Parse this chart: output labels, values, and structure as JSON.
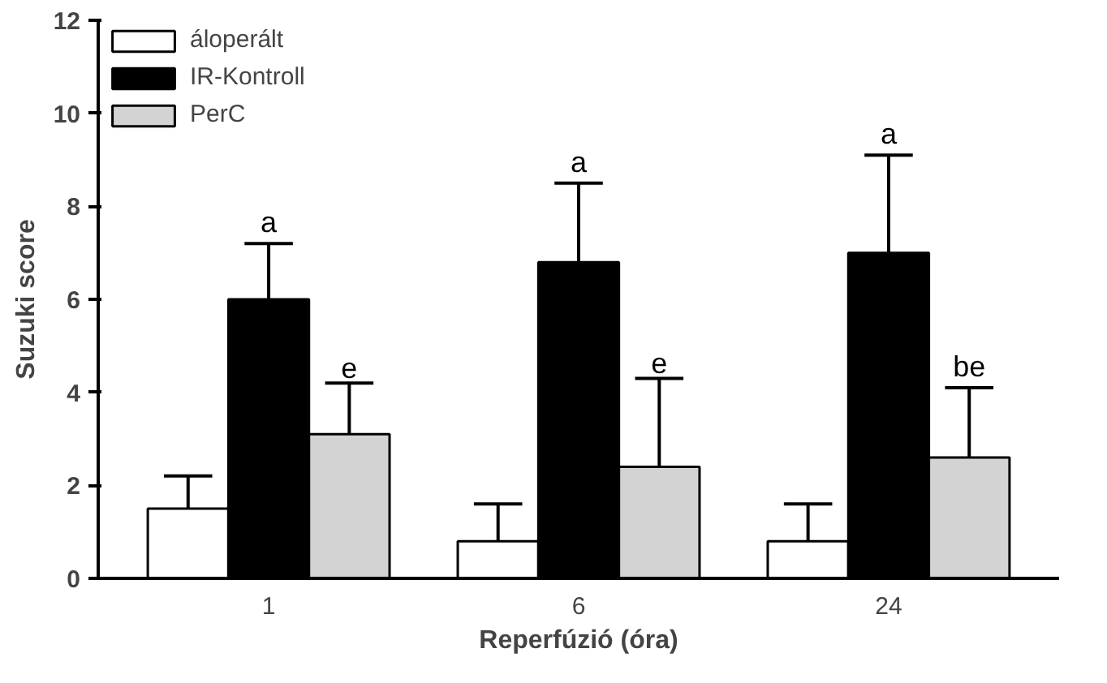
{
  "chart_data": {
    "type": "bar",
    "xlabel": "Reperfúzió (óra)",
    "ylabel": "Suzuki score",
    "categories": [
      "1",
      "6",
      "24"
    ],
    "series": [
      {
        "name": "áloperált",
        "color": "#ffffff",
        "values": [
          1.5,
          0.8,
          0.8
        ],
        "errors": [
          [
            1.5,
            2.2
          ],
          [
            0.8,
            1.6
          ],
          [
            0.8,
            1.6
          ]
        ]
      },
      {
        "name": "IR-Kontroll",
        "color": "#000000",
        "values": [
          6.0,
          6.8,
          7.0
        ],
        "errors": [
          [
            6.0,
            7.2
          ],
          [
            6.8,
            8.5
          ],
          [
            7.0,
            9.1
          ]
        ]
      },
      {
        "name": "PerC",
        "color": "#d3d3d3",
        "values": [
          3.1,
          2.4,
          2.6
        ],
        "errors": [
          [
            3.1,
            4.2
          ],
          [
            2.4,
            4.3
          ],
          [
            2.6,
            4.1
          ]
        ]
      }
    ],
    "annotations": [
      "a",
      "e",
      "a",
      "e",
      "a",
      "be"
    ],
    "ylim": [
      0,
      12
    ],
    "yticks": [
      0,
      2,
      4,
      6,
      8,
      10,
      12
    ],
    "grid": false,
    "legend": "top left"
  }
}
